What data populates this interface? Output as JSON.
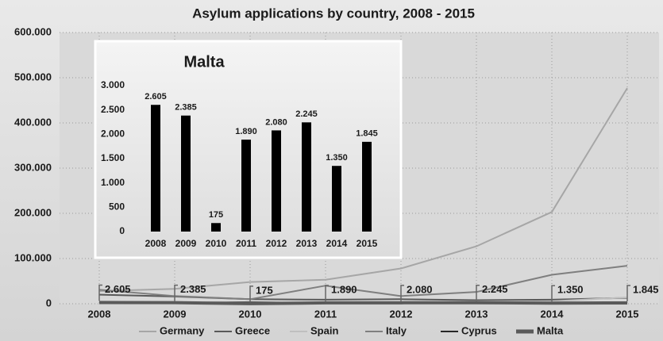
{
  "chart_data": [
    {
      "type": "line",
      "title": "Asylum applications by country, 2008 - 2015",
      "categories": [
        "2008",
        "2009",
        "2010",
        "2011",
        "2012",
        "2013",
        "2014",
        "2015"
      ],
      "series": [
        {
          "name": "Germany",
          "color": "#a6a6a6",
          "values": [
            28000,
            33000,
            48000,
            53000,
            78000,
            127000,
            203000,
            477000
          ]
        },
        {
          "name": "Greece",
          "color": "#595959",
          "values": [
            20000,
            16000,
            10000,
            9000,
            10000,
            8000,
            9000,
            13000
          ]
        },
        {
          "name": "Spain",
          "color": "#bfbfbf",
          "values": [
            5000,
            3000,
            3000,
            3000,
            2500,
            4500,
            5500,
            14000
          ]
        },
        {
          "name": "Italy",
          "color": "#7f7f7f",
          "values": [
            31000,
            17000,
            10000,
            40000,
            17000,
            26000,
            64000,
            84000
          ]
        },
        {
          "name": "Cyprus",
          "color": "#262626",
          "values": [
            3000,
            2500,
            3000,
            1800,
            1600,
            1300,
            1700,
            2200
          ]
        },
        {
          "name": "Malta",
          "color": "#5a5a5a",
          "values": [
            2605,
            2385,
            175,
            1890,
            2080,
            2245,
            1350,
            1845
          ],
          "value_labels": [
            "2.605",
            "2.385",
            "175",
            "1.890",
            "2.080",
            "2.245",
            "1.350",
            "1.845"
          ]
        }
      ],
      "ylim": [
        0,
        600000
      ],
      "yticks": [
        0,
        {
          "value": 100000,
          "label": "100.000"
        },
        {
          "value": 200000,
          "label": "200.000"
        },
        {
          "value": 300000,
          "label": "300.000"
        },
        {
          "value": 400000,
          "label": "400.000"
        },
        {
          "value": 500000,
          "label": "500.000"
        },
        {
          "value": 600000,
          "label": "600.000"
        }
      ],
      "grid": true,
      "legend": "bottom"
    },
    {
      "type": "bar",
      "title": "Malta",
      "categories": [
        "2008",
        "2009",
        "2010",
        "2011",
        "2012",
        "2013",
        "2014",
        "2015"
      ],
      "values": [
        2605,
        2385,
        175,
        1890,
        2080,
        2245,
        1350,
        1845
      ],
      "value_labels": [
        "2.605",
        "2.385",
        "175",
        "1.890",
        "2.080",
        "2.245",
        "1.350",
        "1.845"
      ],
      "color": "#000000",
      "ylim": [
        0,
        3000
      ],
      "yticks": [
        0,
        500,
        {
          "value": 1000,
          "label": "1.000"
        },
        {
          "value": 1500,
          "label": "1.500"
        },
        {
          "value": 2000,
          "label": "2.000"
        },
        {
          "value": 2500,
          "label": "2.500"
        },
        {
          "value": 3000,
          "label": "3.000"
        }
      ]
    }
  ]
}
